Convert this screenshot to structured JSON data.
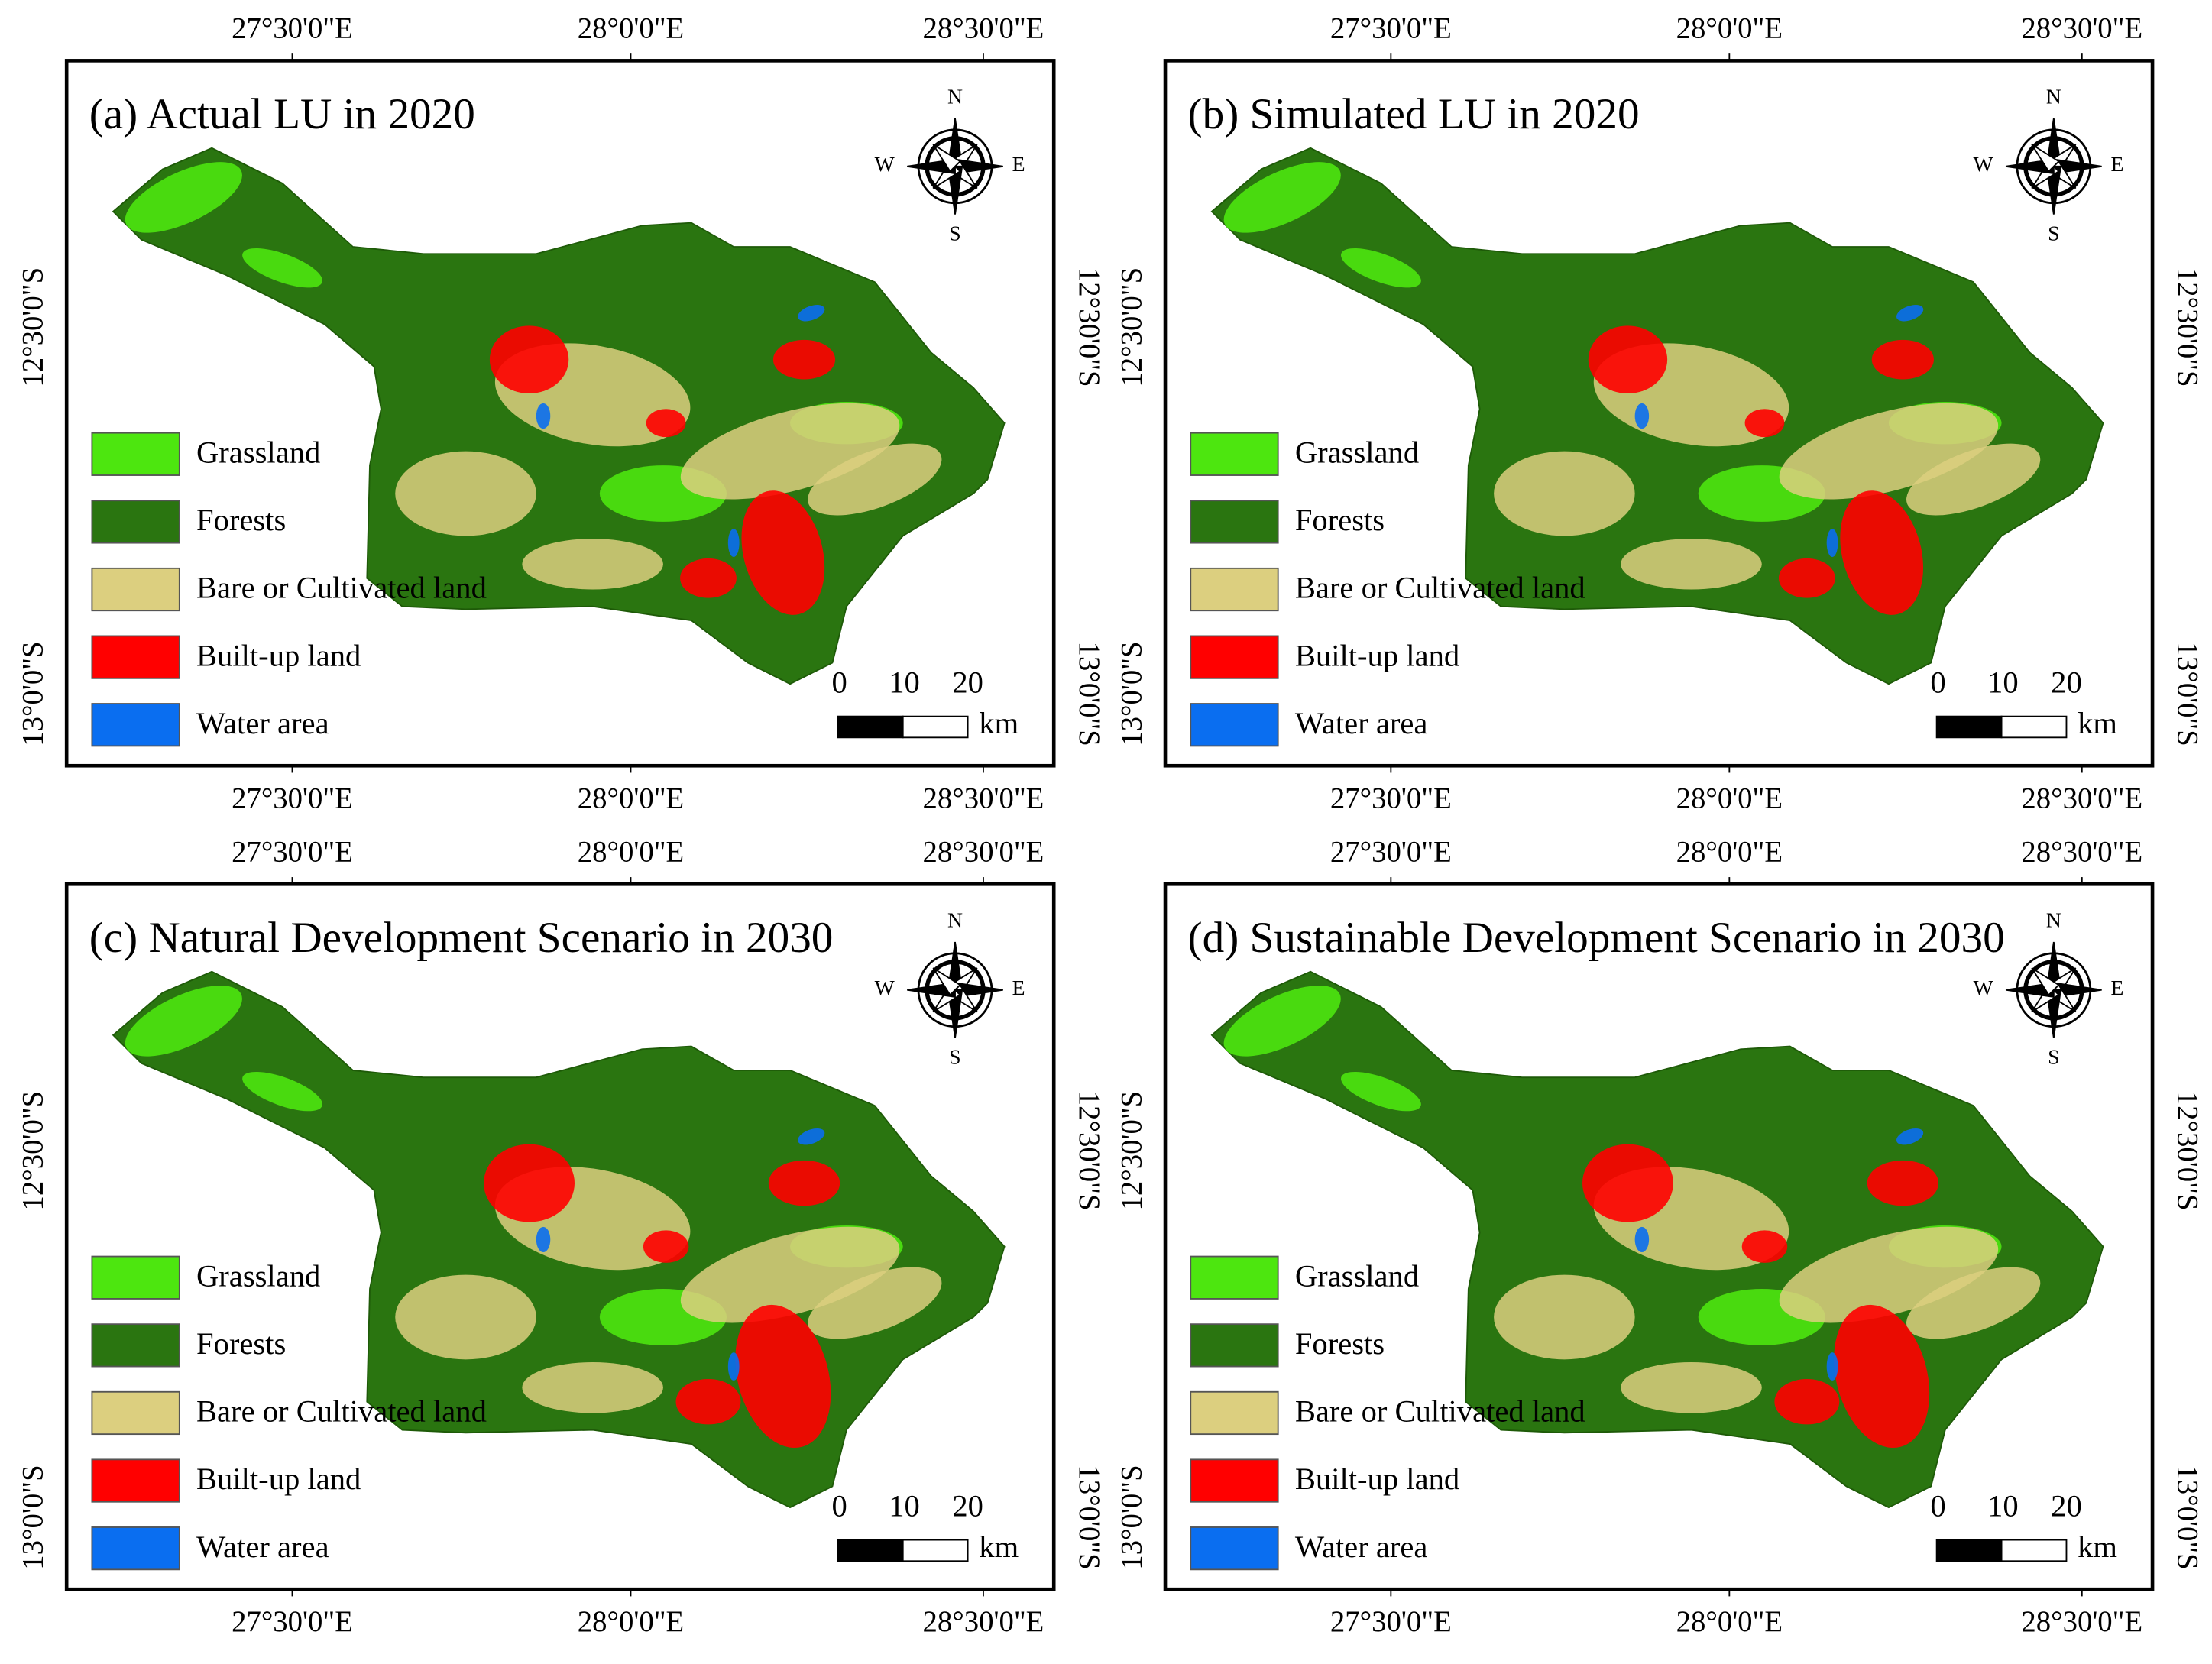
{
  "panels": [
    {
      "title": "(a) Actual LU in 2020"
    },
    {
      "title": "(b) Simulated LU in 2020"
    },
    {
      "title": "(c) Natural Development Scenario in 2030"
    },
    {
      "title": "(d) Sustainable Development Scenario in 2030"
    }
  ],
  "legend": [
    {
      "label": "Grassland",
      "color": "#4de60f"
    },
    {
      "label": "Forests",
      "color": "#2a7510"
    },
    {
      "label": "Bare or Cultivated land",
      "color": "#dccf7f"
    },
    {
      "label": "Built-up land",
      "color": "#ff0000"
    },
    {
      "label": "Water area",
      "color": "#0a6ef0"
    }
  ],
  "longitude_labels": [
    "27°30'0\"E",
    "28°0'0\"E",
    "28°30'0\"E"
  ],
  "latitude_labels": [
    "12°30'0\"S",
    "13°0'0\"S"
  ],
  "compass": {
    "north": "N",
    "south": "S",
    "west": "W",
    "east": "E"
  },
  "scale_bar": {
    "ticks": [
      "0",
      "10",
      "20"
    ],
    "unit": "km"
  }
}
